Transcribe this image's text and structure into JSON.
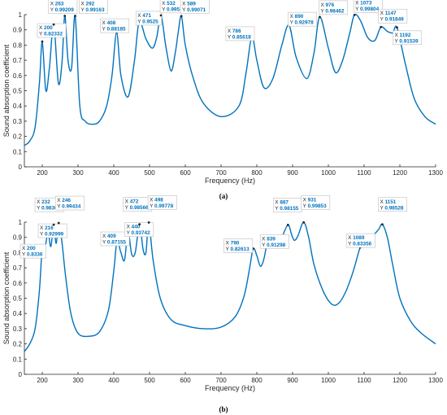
{
  "panel_labels": [
    "(a)",
    "(b)"
  ],
  "colors": {
    "curve": "#0072BD",
    "datatip_value": "#0072BD",
    "axis": "#262626"
  },
  "chart_data": [
    {
      "type": "line",
      "panel": "(a)",
      "xlabel": "Frequency (Hz)",
      "ylabel": "Sound absorption coefficient",
      "xlim": [
        150,
        1300
      ],
      "ylim": [
        0,
        1
      ],
      "xticks": [
        200,
        300,
        400,
        500,
        600,
        700,
        800,
        900,
        1000,
        1100,
        1200,
        1300
      ],
      "yticks": [
        0,
        0.1,
        0.2,
        0.3,
        0.4,
        0.5,
        0.6,
        0.7,
        0.8,
        0.9,
        1
      ],
      "grid": false,
      "series": [
        {
          "x": [
            150,
            165,
            180,
            192,
            200,
            210,
            220,
            232,
            245,
            255,
            263,
            272,
            282,
            292,
            305,
            320,
            340,
            360,
            380,
            395,
            408,
            420,
            440,
            458,
            471,
            490,
            508,
            520,
            532,
            545,
            560,
            572,
            580,
            589,
            600,
            620,
            650,
            700,
            750,
            770,
            786,
            800,
            820,
            845,
            870,
            890,
            910,
            940,
            960,
            976,
            1000,
            1020,
            1040,
            1060,
            1073,
            1090,
            1110,
            1130,
            1147,
            1165,
            1180,
            1192,
            1215,
            1240,
            1270,
            1300
          ],
          "y": [
            0.14,
            0.17,
            0.26,
            0.55,
            0.82,
            0.5,
            0.65,
            0.935,
            0.55,
            0.68,
            0.992,
            0.7,
            0.65,
            0.992,
            0.4,
            0.3,
            0.28,
            0.3,
            0.4,
            0.6,
            0.882,
            0.6,
            0.46,
            0.7,
            0.953,
            0.84,
            0.78,
            0.85,
            0.995,
            0.8,
            0.63,
            0.75,
            0.88,
            0.991,
            0.8,
            0.6,
            0.42,
            0.33,
            0.4,
            0.62,
            0.856,
            0.7,
            0.52,
            0.58,
            0.8,
            0.93,
            0.72,
            0.58,
            0.75,
            0.985,
            0.78,
            0.62,
            0.7,
            0.88,
            0.998,
            0.96,
            0.85,
            0.83,
            0.918,
            0.89,
            0.88,
            0.915,
            0.68,
            0.45,
            0.33,
            0.28
          ]
        }
      ],
      "datatips": [
        {
          "x": "200",
          "y": "0.82332"
        },
        {
          "x": "232",
          "y": "0.9353"
        },
        {
          "x": "263",
          "y": "0.99209"
        },
        {
          "x": "292",
          "y": "0.99163"
        },
        {
          "x": "408",
          "y": "0.88185"
        },
        {
          "x": "471",
          "y": "0.9525"
        },
        {
          "x": "532",
          "y": "0.99516"
        },
        {
          "x": "589",
          "y": "0.99071"
        },
        {
          "x": "786",
          "y": "0.85618"
        },
        {
          "x": "890",
          "y": "0.92978"
        },
        {
          "x": "976",
          "y": "0.98462"
        },
        {
          "x": "1073",
          "y": "0.99804"
        },
        {
          "x": "1147",
          "y": "0.91849"
        },
        {
          "x": "1192",
          "y": "0.91539"
        }
      ]
    },
    {
      "type": "line",
      "panel": "(b)",
      "xlabel": "Frequency (Hz)",
      "ylabel": "Sound absorption coefficient",
      "xlim": [
        150,
        1300
      ],
      "ylim": [
        0,
        1
      ],
      "xticks": [
        200,
        300,
        400,
        500,
        600,
        700,
        800,
        900,
        1000,
        1100,
        1200,
        1300
      ],
      "yticks": [
        0,
        0.1,
        0.2,
        0.3,
        0.4,
        0.5,
        0.6,
        0.7,
        0.8,
        0.9,
        1
      ],
      "grid": false,
      "series": [
        {
          "x": [
            150,
            165,
            180,
            192,
            200,
            207,
            216,
            224,
            232,
            239,
            246,
            255,
            265,
            280,
            300,
            330,
            360,
            385,
            400,
            409,
            420,
            430,
            440,
            450,
            460,
            472,
            482,
            490,
            498,
            510,
            530,
            560,
            600,
            650,
            700,
            740,
            765,
            780,
            790,
            800,
            810,
            820,
            830,
            839,
            845,
            855,
            870,
            887,
            897,
            905,
            915,
            931,
            945,
            960,
            985,
            1010,
            1030,
            1050,
            1070,
            1089,
            1100,
            1120,
            1140,
            1151,
            1165,
            1180,
            1200,
            1230,
            1260,
            1300
          ],
          "y": [
            0.15,
            0.2,
            0.3,
            0.55,
            0.834,
            0.82,
            0.93,
            0.84,
            0.983,
            0.86,
            0.994,
            0.87,
            0.65,
            0.4,
            0.27,
            0.25,
            0.28,
            0.42,
            0.68,
            0.872,
            0.8,
            0.75,
            0.937,
            0.79,
            0.8,
            0.986,
            0.82,
            0.8,
            0.998,
            0.75,
            0.5,
            0.36,
            0.32,
            0.3,
            0.31,
            0.38,
            0.52,
            0.7,
            0.826,
            0.78,
            0.71,
            0.76,
            0.88,
            0.913,
            0.85,
            0.84,
            0.9,
            0.982,
            0.92,
            0.88,
            0.91,
            0.999,
            0.9,
            0.72,
            0.55,
            0.46,
            0.47,
            0.55,
            0.68,
            0.834,
            0.86,
            0.9,
            0.95,
            0.985,
            0.9,
            0.72,
            0.5,
            0.35,
            0.27,
            0.2
          ]
        }
      ],
      "datatips": [
        {
          "x": "200",
          "y": "0.8336"
        },
        {
          "x": "216",
          "y": "0.92999"
        },
        {
          "x": "232",
          "y": "0.98303"
        },
        {
          "x": "246",
          "y": "0.99434"
        },
        {
          "x": "409",
          "y": "0.87155"
        },
        {
          "x": "440",
          "y": "0.93742"
        },
        {
          "x": "472",
          "y": "0.98566"
        },
        {
          "x": "498",
          "y": "0.99778"
        },
        {
          "x": "790",
          "y": "0.82613"
        },
        {
          "x": "839",
          "y": "0.91298"
        },
        {
          "x": "887",
          "y": "0.98155"
        },
        {
          "x": "931",
          "y": "0.99853"
        },
        {
          "x": "1089",
          "y": "0.83356"
        },
        {
          "x": "1151",
          "y": "0.98528"
        }
      ]
    }
  ]
}
